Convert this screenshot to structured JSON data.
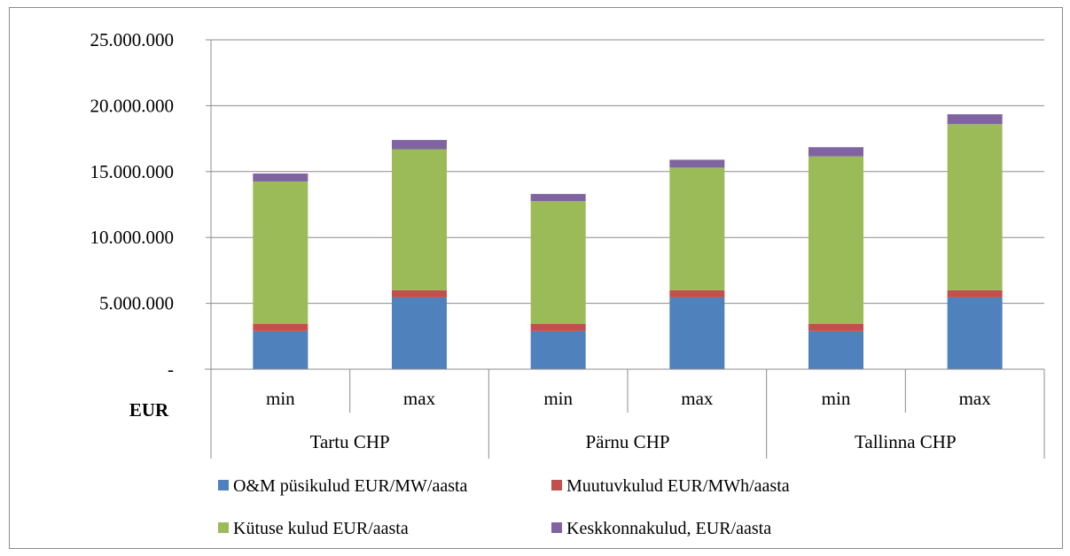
{
  "chart_data": {
    "type": "bar",
    "stacked": true,
    "title": "",
    "ylabel": "",
    "unit_label": "EUR",
    "ylim": [
      0,
      25000000
    ],
    "yticks": [
      {
        "value": 0,
        "label": "-"
      },
      {
        "value": 5000000,
        "label": "5.000.000"
      },
      {
        "value": 10000000,
        "label": "10.000.000"
      },
      {
        "value": 15000000,
        "label": "15.000.000"
      },
      {
        "value": 20000000,
        "label": "20.000.000"
      },
      {
        "value": 25000000,
        "label": "25.000.000"
      }
    ],
    "groups": [
      "Tartu CHP",
      "Pärnu CHP",
      "Tallinna CHP"
    ],
    "categories": [
      "min",
      "max",
      "min",
      "max",
      "min",
      "max"
    ],
    "series": [
      {
        "name": "O&M püsikulud EUR/MW/aasta",
        "color": "#4f81bd",
        "values": [
          2900000,
          5450000,
          2900000,
          5450000,
          2900000,
          5450000
        ]
      },
      {
        "name": "Muutuvkulud EUR/MWh/aasta",
        "color": "#c0504d",
        "values": [
          550000,
          550000,
          550000,
          550000,
          550000,
          550000
        ]
      },
      {
        "name": "Kütuse kulud EUR/aasta",
        "color": "#9bbb59",
        "values": [
          10800000,
          10700000,
          9300000,
          9300000,
          12700000,
          12600000
        ]
      },
      {
        "name": "Keskkonnakulud, EUR/aasta",
        "color": "#8064a2",
        "values": [
          600000,
          700000,
          550000,
          600000,
          700000,
          750000
        ]
      }
    ],
    "grid": true,
    "legend_position": "bottom"
  }
}
